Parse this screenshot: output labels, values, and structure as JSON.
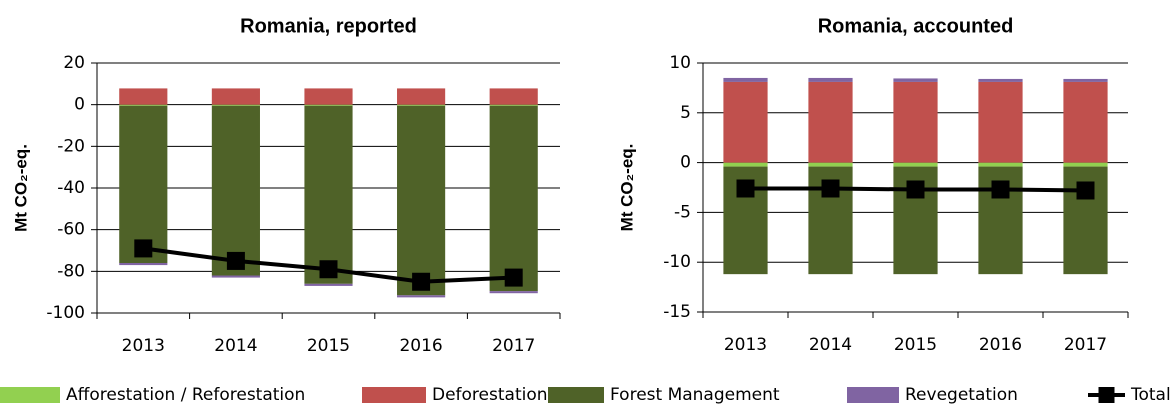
{
  "chart_data": [
    {
      "type": "bar",
      "stacked": true,
      "title": "Romania, reported",
      "y_label": "Mt CO₂-eq.",
      "categories": [
        "2013",
        "2014",
        "2015",
        "2016",
        "2017"
      ],
      "ylim": [
        -100,
        20
      ],
      "yticks": [
        -100,
        -80,
        -60,
        -40,
        -20,
        0,
        20
      ],
      "grid": true,
      "series": [
        {
          "name": "Afforestation / Reforestation",
          "color": "#92d050",
          "values": [
            -0.5,
            -0.5,
            -0.5,
            -0.5,
            -0.5
          ]
        },
        {
          "name": "Deforestation",
          "color": "#c0504d",
          "values": [
            7.8,
            7.8,
            7.8,
            7.8,
            7.8
          ]
        },
        {
          "name": "Forest Management",
          "color": "#4f6228",
          "values": [
            -75.5,
            -81.5,
            -85.5,
            -91,
            -89
          ]
        },
        {
          "name": "Revegetation",
          "color": "#8064a2",
          "values": [
            -1,
            -1,
            -1,
            -1,
            -1
          ]
        },
        {
          "name": "Total",
          "type": "line",
          "color": "#000000",
          "values": [
            -69,
            -75,
            -79,
            -85,
            -83
          ]
        }
      ]
    },
    {
      "type": "bar",
      "stacked": true,
      "title": "Romania, accounted",
      "y_label": "Mt CO₂-eq.",
      "categories": [
        "2013",
        "2014",
        "2015",
        "2016",
        "2017"
      ],
      "ylim": [
        -15,
        10
      ],
      "yticks": [
        -15,
        -10,
        -5,
        0,
        5,
        10
      ],
      "grid": true,
      "series": [
        {
          "name": "Afforestation / Reforestation",
          "color": "#92d050",
          "values": [
            -0.4,
            -0.4,
            -0.4,
            -0.4,
            -0.4
          ]
        },
        {
          "name": "Deforestation",
          "color": "#c0504d",
          "values": [
            8.1,
            8.1,
            8.1,
            8.1,
            8.1
          ]
        },
        {
          "name": "Forest Management",
          "color": "#4f6228",
          "values": [
            -10.8,
            -10.8,
            -10.8,
            -10.8,
            -10.8
          ]
        },
        {
          "name": "Revegetation",
          "color": "#8064a2",
          "values": [
            0.4,
            0.4,
            0.35,
            0.3,
            0.3
          ]
        },
        {
          "name": "Total",
          "type": "line",
          "color": "#000000",
          "values": [
            -2.6,
            -2.6,
            -2.7,
            -2.7,
            -2.8
          ]
        }
      ]
    }
  ]
}
